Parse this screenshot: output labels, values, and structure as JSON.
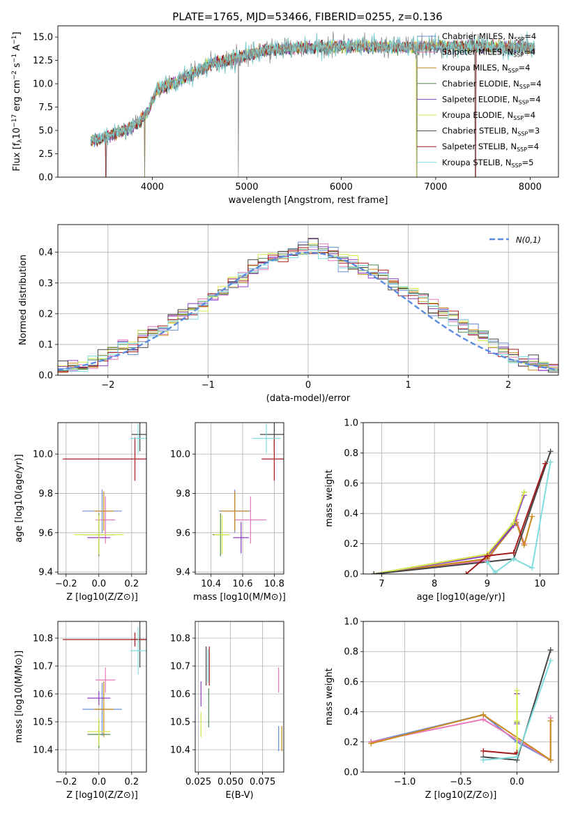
{
  "figure": {
    "title": "PLATE=1765, MJD=53466, FIBERID=0255, z=0.136"
  },
  "colors": {
    "Chabrier MILES": "#6b8fd6",
    "Salpeter MILES": "#e878b8",
    "Kroupa MILES": "#c98a1a",
    "Chabrier ELODIE": "#4e8a4e",
    "Salpeter ELODIE": "#8d3fc4",
    "Kroupa ELODIE": "#d6e84a",
    "Chabrier STELIB": "#444444",
    "Salpeter STELIB": "#a31c1c",
    "Kroupa STELIB": "#7fdcdc",
    "data": "#808080",
    "fit_orange": "#e07b39",
    "normal": "#5b8be0",
    "grid": "#b0b0b0"
  },
  "chart_data": [
    {
      "id": "spectrum",
      "type": "line",
      "title": "PLATE=1765, MJD=53466, FIBERID=0255, z=0.136",
      "xlabel": "wavelength [Angstrom, rest frame]",
      "ylabel": "Flux [f_λ 10^-17 erg cm^-2 s^-1 A^-1]",
      "xlim": [
        3000,
        8300
      ],
      "ylim": [
        0,
        16.2
      ],
      "xticks": [
        4000,
        5000,
        6000,
        7000,
        8000
      ],
      "yticks": [
        0.0,
        2.5,
        5.0,
        7.5,
        10.0,
        12.5,
        15.0
      ],
      "grid": false,
      "legend_position": "top-right",
      "continuum": [
        [
          3350,
          3.9
        ],
        [
          3500,
          4.3
        ],
        [
          3700,
          5.0
        ],
        [
          3850,
          5.8
        ],
        [
          3950,
          7.0
        ],
        [
          4050,
          9.4
        ],
        [
          4300,
          10.4
        ],
        [
          4600,
          12.0
        ],
        [
          4900,
          12.8
        ],
        [
          5200,
          13.6
        ],
        [
          5600,
          13.9
        ],
        [
          6000,
          14.0
        ],
        [
          6500,
          13.9
        ],
        [
          7000,
          14.0
        ],
        [
          7400,
          14.0
        ],
        [
          7800,
          13.9
        ],
        [
          8050,
          13.8
        ]
      ],
      "spikes_down": [
        [
          3510,
          0.0
        ],
        [
          3920,
          0.0
        ],
        [
          4910,
          0.0
        ],
        [
          6800,
          0.0
        ],
        [
          7420,
          0.0
        ]
      ],
      "series": [
        {
          "name": "Chabrier MILES",
          "n_ssp": "4"
        },
        {
          "name": "Salpeter MILES",
          "n_ssp": "4"
        },
        {
          "name": "Kroupa MILES",
          "n_ssp": "4"
        },
        {
          "name": "Chabrier ELODIE",
          "n_ssp": "4"
        },
        {
          "name": "Salpeter ELODIE",
          "n_ssp": "4"
        },
        {
          "name": "Kroupa ELODIE",
          "n_ssp": "4"
        },
        {
          "name": "Chabrier STELIB",
          "n_ssp": "3"
        },
        {
          "name": "Salpeter STELIB",
          "n_ssp": "4"
        },
        {
          "name": "Kroupa STELIB",
          "n_ssp": "5"
        }
      ]
    },
    {
      "id": "residuals",
      "type": "line",
      "xlabel": "(data-model)/error",
      "ylabel": "Normed distribution",
      "xlim": [
        -2.5,
        2.5
      ],
      "ylim": [
        0,
        0.49
      ],
      "xticks": [
        -2,
        -1,
        0,
        1,
        2
      ],
      "yticks": [
        0.0,
        0.1,
        0.2,
        0.3,
        0.4
      ],
      "grid": true,
      "legend_position": "top-right",
      "legend": "N(0,1)",
      "bin_edges_start": -2.5,
      "bin_width": 0.1,
      "histogram": [
        0.02,
        0.025,
        0.03,
        0.04,
        0.06,
        0.08,
        0.09,
        0.1,
        0.12,
        0.14,
        0.15,
        0.18,
        0.2,
        0.21,
        0.23,
        0.25,
        0.27,
        0.3,
        0.32,
        0.35,
        0.37,
        0.38,
        0.39,
        0.4,
        0.41,
        0.42,
        0.41,
        0.39,
        0.37,
        0.36,
        0.35,
        0.34,
        0.32,
        0.3,
        0.28,
        0.27,
        0.25,
        0.22,
        0.2,
        0.18,
        0.16,
        0.14,
        0.12,
        0.1,
        0.08,
        0.06,
        0.05,
        0.04,
        0.03,
        0.025
      ]
    },
    {
      "id": "age-vs-Z",
      "type": "scatter",
      "xlabel": "Z [log10(Z/Z⊙)]",
      "ylabel": "age [log10(age/yr)]",
      "xlim": [
        -0.25,
        0.29
      ],
      "ylim": [
        9.39,
        10.16
      ],
      "xticks": [
        -0.2,
        0.0,
        0.2
      ],
      "yticks": [
        9.4,
        9.6,
        9.8,
        10.0
      ],
      "grid": true,
      "points": [
        {
          "s": "Chabrier MILES",
          "x": 0.02,
          "y": 9.71,
          "xe": 0.12,
          "ye": 0.22
        },
        {
          "s": "Salpeter MILES",
          "x": 0.04,
          "y": 9.665,
          "xe": 0.06,
          "ye": 0.24
        },
        {
          "s": "Kroupa MILES",
          "x": 0.03,
          "y": 9.71,
          "xe": 0.06,
          "ye": 0.2
        },
        {
          "s": "Chabrier ELODIE",
          "x": 0.0,
          "y": 9.59,
          "xe": 0.1,
          "ye": 0.22
        },
        {
          "s": "Salpeter ELODIE",
          "x": 0.0,
          "y": 9.575,
          "xe": 0.07,
          "ye": 0.16
        },
        {
          "s": "Kroupa ELODIE",
          "x": 0.0,
          "y": 9.59,
          "xe": 0.15,
          "ye": 0.2
        },
        {
          "s": "Chabrier STELIB",
          "x": 0.25,
          "y": 10.1,
          "xe": 0.05,
          "ye": 0.17
        },
        {
          "s": "Salpeter STELIB",
          "x": 0.22,
          "y": 9.975,
          "xe": 0.44,
          "ye": 0.22
        },
        {
          "s": "Kroupa STELIB",
          "x": 0.24,
          "y": 10.08,
          "xe": 0.05,
          "ye": 0.15
        }
      ]
    },
    {
      "id": "age-vs-mass",
      "type": "scatter",
      "xlabel": "mass [log10(M/M⊙)]",
      "ylabel": "",
      "xlim": [
        10.3,
        10.86
      ],
      "ylim": [
        9.39,
        10.16
      ],
      "xticks": [
        10.4,
        10.6,
        10.8
      ],
      "yticks": [
        9.4,
        9.6,
        9.8,
        10.0
      ],
      "grid": true,
      "points": [
        {
          "s": "Chabrier MILES",
          "x": 10.55,
          "y": 9.71,
          "xe": 0.1,
          "ye": 0.22
        },
        {
          "s": "Salpeter MILES",
          "x": 10.65,
          "y": 9.665,
          "xe": 0.1,
          "ye": 0.24
        },
        {
          "s": "Kroupa MILES",
          "x": 10.55,
          "y": 9.71,
          "xe": 0.09,
          "ye": 0.2
        },
        {
          "s": "Chabrier ELODIE",
          "x": 10.46,
          "y": 9.59,
          "xe": 0.05,
          "ye": 0.22
        },
        {
          "s": "Salpeter ELODIE",
          "x": 10.59,
          "y": 9.575,
          "xe": 0.05,
          "ye": 0.16
        },
        {
          "s": "Kroupa ELODIE",
          "x": 10.47,
          "y": 9.59,
          "xe": 0.05,
          "ye": 0.2
        },
        {
          "s": "Chabrier STELIB",
          "x": 10.8,
          "y": 10.1,
          "xe": 0.09,
          "ye": 0.17
        },
        {
          "s": "Salpeter STELIB",
          "x": 10.8,
          "y": 9.975,
          "xe": 0.08,
          "ye": 0.22
        },
        {
          "s": "Kroupa STELIB",
          "x": 10.75,
          "y": 10.08,
          "xe": 0.09,
          "ye": 0.15
        }
      ]
    },
    {
      "id": "weight-vs-age",
      "type": "line",
      "xlabel": "age [log10(age/yr)]",
      "ylabel": "mass weight",
      "xlim": [
        6.65,
        10.35
      ],
      "ylim": [
        0,
        1.0
      ],
      "xticks": [
        7,
        8,
        9,
        10
      ],
      "yticks": [
        0.0,
        0.2,
        0.4,
        0.6,
        0.8,
        1.0
      ],
      "grid": true,
      "series": [
        {
          "name": "Chabrier MILES",
          "x": [
            6.85,
            9.0,
            9.55,
            9.7
          ],
          "y": [
            0.0,
            0.1,
            0.34,
            0.2
          ]
        },
        {
          "name": "Salpeter MILES",
          "x": [
            6.85,
            9.0,
            9.55,
            9.7
          ],
          "y": [
            0.0,
            0.09,
            0.36,
            0.2
          ]
        },
        {
          "name": "Kroupa MILES",
          "x": [
            6.85,
            9.0,
            9.55,
            9.7,
            9.85
          ],
          "y": [
            0.0,
            0.1,
            0.34,
            0.19,
            0.38
          ]
        },
        {
          "name": "Chabrier ELODIE",
          "x": [
            6.85,
            9.0,
            9.5,
            9.7
          ],
          "y": [
            0.0,
            0.13,
            0.33,
            0.54
          ]
        },
        {
          "name": "Salpeter ELODIE",
          "x": [
            6.85,
            9.0,
            9.5,
            9.7
          ],
          "y": [
            0.0,
            0.12,
            0.32,
            0.52
          ]
        },
        {
          "name": "Kroupa ELODIE",
          "x": [
            6.85,
            9.0,
            9.5,
            9.7
          ],
          "y": [
            0.0,
            0.13,
            0.34,
            0.54
          ]
        },
        {
          "name": "Chabrier STELIB",
          "x": [
            6.85,
            9.0,
            9.5,
            10.2
          ],
          "y": [
            0.0,
            0.08,
            0.1,
            0.81
          ]
        },
        {
          "name": "Salpeter STELIB",
          "x": [
            8.6,
            9.0,
            9.5,
            10.1
          ],
          "y": [
            0.0,
            0.12,
            0.14,
            0.73
          ]
        },
        {
          "name": "Kroupa STELIB",
          "x": [
            9.0,
            9.15,
            9.5,
            9.85,
            10.2
          ],
          "y": [
            0.08,
            0.01,
            0.1,
            0.04,
            0.74
          ]
        }
      ]
    },
    {
      "id": "mass-vs-Z",
      "type": "scatter",
      "xlabel": "Z [log10(Z/Z⊙)]",
      "ylabel": "mass [log10(M/M⊙)]",
      "xlim": [
        -0.25,
        0.29
      ],
      "ylim": [
        10.32,
        10.86
      ],
      "xticks": [
        -0.2,
        0.0,
        0.2
      ],
      "yticks": [
        10.4,
        10.5,
        10.6,
        10.7,
        10.8
      ],
      "grid": true,
      "points": [
        {
          "s": "Chabrier MILES",
          "x": 0.02,
          "y": 10.545,
          "xe": 0.12,
          "ye": 0.19
        },
        {
          "s": "Salpeter MILES",
          "x": 0.04,
          "y": 10.65,
          "xe": 0.06,
          "ye": 0.09
        },
        {
          "s": "Kroupa MILES",
          "x": 0.03,
          "y": 10.545,
          "xe": 0.06,
          "ye": 0.2
        },
        {
          "s": "Chabrier ELODIE",
          "x": 0.0,
          "y": 10.455,
          "xe": 0.07,
          "ye": 0.1
        },
        {
          "s": "Salpeter ELODIE",
          "x": 0.0,
          "y": 10.585,
          "xe": 0.07,
          "ye": 0.05
        },
        {
          "s": "Kroupa ELODIE",
          "x": 0.0,
          "y": 10.465,
          "xe": 0.07,
          "ye": 0.1
        },
        {
          "s": "Chabrier STELIB",
          "x": 0.25,
          "y": 10.795,
          "xe": 0.05,
          "ye": 0.2
        },
        {
          "s": "Salpeter STELIB",
          "x": 0.22,
          "y": 10.795,
          "xe": 0.44,
          "ye": 0.05
        },
        {
          "s": "Kroupa STELIB",
          "x": 0.24,
          "y": 10.755,
          "xe": 0.05,
          "ye": 0.17
        }
      ]
    },
    {
      "id": "mass-vs-ebv",
      "type": "scatter",
      "xlabel": "E(B-V)",
      "ylabel": "",
      "xlim": [
        0.0225,
        0.0915
      ],
      "ylim": [
        10.32,
        10.86
      ],
      "xticks": [
        0.025,
        0.05,
        0.075
      ],
      "yticks": [
        10.4,
        10.5,
        10.6,
        10.7,
        10.8
      ],
      "grid": true,
      "points": [
        {
          "s": "Chabrier MILES",
          "x": 0.0875,
          "y": 10.44,
          "ye": 0.09
        },
        {
          "s": "Salpeter MILES",
          "x": 0.0875,
          "y": 10.65,
          "ye": 0.09
        },
        {
          "s": "Kroupa MILES",
          "x": 0.09,
          "y": 10.44,
          "ye": 0.09
        },
        {
          "s": "Chabrier ELODIE",
          "x": 0.033,
          "y": 10.55,
          "ye": 0.14
        },
        {
          "s": "Salpeter ELODIE",
          "x": 0.027,
          "y": 10.6,
          "ye": 0.09
        },
        {
          "s": "Kroupa ELODIE",
          "x": 0.027,
          "y": 10.49,
          "ye": 0.09
        },
        {
          "s": "Chabrier STELIB",
          "x": 0.031,
          "y": 10.7,
          "ye": 0.14
        },
        {
          "s": "Salpeter STELIB",
          "x": 0.0335,
          "y": 10.7,
          "ye": 0.14
        },
        {
          "s": "Kroupa STELIB",
          "x": 0.0325,
          "y": 10.7,
          "ye": 0.12
        }
      ]
    },
    {
      "id": "weight-vs-Z",
      "type": "line",
      "xlabel": "Z [log10(Z/Z⊙)]",
      "ylabel": "mass weight",
      "xlim": [
        -1.37,
        0.37
      ],
      "ylim": [
        0,
        1.0
      ],
      "xticks": [
        -1.0,
        -0.5,
        0.0
      ],
      "yticks": [
        0.0,
        0.2,
        0.4,
        0.6,
        0.8,
        1.0
      ],
      "grid": true,
      "series": [
        {
          "name": "Chabrier MILES",
          "x": [
            -1.3,
            -0.3,
            0.0,
            0.3
          ],
          "y": [
            0.2,
            0.38,
            0.2,
            0.08
          ]
        },
        {
          "name": "Salpeter MILES",
          "x": [
            -1.3,
            -0.3,
            0.3,
            0.3
          ],
          "y": [
            0.2,
            0.35,
            0.08,
            0.36
          ]
        },
        {
          "name": "Kroupa MILES",
          "x": [
            -1.3,
            -0.3,
            0.3,
            0.3
          ],
          "y": [
            0.19,
            0.38,
            0.08,
            0.34
          ]
        },
        {
          "name": "Chabrier ELODIE",
          "x": [
            0.0,
            0.0,
            0.0
          ],
          "y": [
            0.13,
            0.33,
            0.54
          ]
        },
        {
          "name": "Salpeter ELODIE",
          "x": [
            0.0,
            0.0,
            0.0
          ],
          "y": [
            0.12,
            0.32,
            0.52
          ]
        },
        {
          "name": "Kroupa ELODIE",
          "x": [
            0.0,
            0.0,
            0.0
          ],
          "y": [
            0.13,
            0.34,
            0.54
          ]
        },
        {
          "name": "Chabrier STELIB",
          "x": [
            -0.3,
            0.0,
            0.3
          ],
          "y": [
            0.1,
            0.08,
            0.81
          ]
        },
        {
          "name": "Salpeter STELIB",
          "x": [
            -0.3,
            0.0,
            0.0
          ],
          "y": [
            0.14,
            0.12,
            0.13
          ]
        },
        {
          "name": "Kroupa STELIB",
          "x": [
            -0.3,
            0.0,
            0.3
          ],
          "y": [
            0.08,
            0.1,
            0.74
          ]
        }
      ]
    }
  ]
}
